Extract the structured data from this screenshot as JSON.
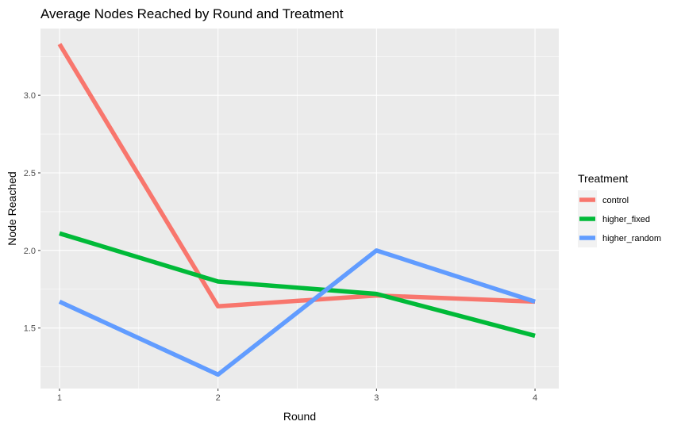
{
  "chart_data": {
    "type": "line",
    "title": "Average Nodes Reached by Round and Treatment",
    "xlabel": "Round",
    "ylabel": "Node Reached",
    "x": [
      1,
      2,
      3,
      4
    ],
    "xlim": [
      0.88,
      4.15
    ],
    "ylim": [
      1.11,
      3.43
    ],
    "xticks": [
      "1",
      "2",
      "3",
      "4"
    ],
    "yticks": [
      "1.5",
      "2.0",
      "2.5",
      "3.0"
    ],
    "ytick_values": [
      1.5,
      2.0,
      2.5,
      3.0
    ],
    "grid": true,
    "legend_title": "Treatment",
    "legend_position": "right",
    "series": [
      {
        "name": "control",
        "color": "#F8766D",
        "values": [
          3.33,
          1.64,
          1.71,
          1.67
        ]
      },
      {
        "name": "higher_fixed",
        "color": "#00BA38",
        "values": [
          2.11,
          1.8,
          1.72,
          1.45
        ]
      },
      {
        "name": "higher_random",
        "color": "#619CFF",
        "values": [
          1.67,
          1.2,
          2.0,
          1.67
        ]
      }
    ]
  }
}
